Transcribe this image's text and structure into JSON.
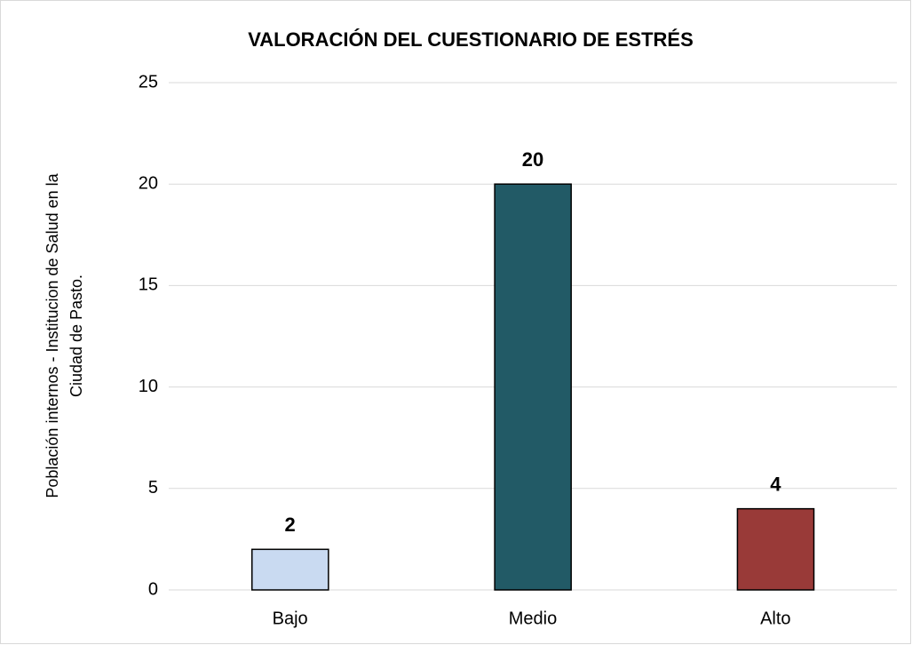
{
  "chart_data": {
    "type": "bar",
    "title": "VALORACIÓN DEL CUESTIONARIO DE ESTRÉS",
    "ylabel": [
      "Población internos - Institucion de Salud en la",
      "Ciudad de Pasto."
    ],
    "categories": [
      "Bajo",
      "Medio",
      "Alto"
    ],
    "values": [
      2,
      20,
      4
    ],
    "colors": [
      "#c9daf1",
      "#225a66",
      "#993a38"
    ],
    "ylim": [
      0,
      25
    ],
    "yticks": [
      0,
      5,
      10,
      15,
      20,
      25
    ],
    "grid": true
  }
}
